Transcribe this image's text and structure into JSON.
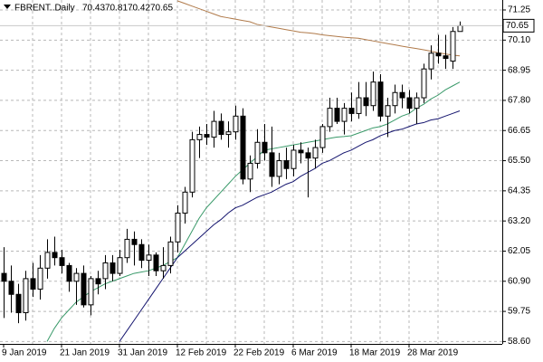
{
  "chart_data": {
    "type": "candlestick",
    "symbol": "FBRENT..Daily",
    "categories": [
      "9 Jan 2019",
      null,
      null,
      null,
      null,
      null,
      null,
      null,
      "21 Jan 2019",
      null,
      null,
      null,
      null,
      null,
      null,
      null,
      "31 Jan 2019",
      null,
      null,
      null,
      null,
      null,
      null,
      null,
      "12 Feb 2019",
      null,
      null,
      null,
      null,
      null,
      null,
      null,
      "22 Feb 2019",
      null,
      null,
      null,
      null,
      null,
      null,
      null,
      "6 Mar 2019",
      null,
      null,
      null,
      null,
      null,
      null,
      null,
      "18 Mar 2019",
      null,
      null,
      null,
      null,
      null,
      null,
      null,
      "28 Mar 2019",
      null,
      null,
      null,
      null,
      null,
      null,
      null
    ],
    "open": [
      61.2,
      60.9,
      60.4,
      59.7,
      61.0,
      60.6,
      61.4,
      62.0,
      61.8,
      61.5,
      60.9,
      61.2,
      60.0,
      61.0,
      61.0,
      61.6,
      61.2,
      61.8,
      62.5,
      62.3,
      61.7,
      61.9,
      61.3,
      61.5,
      62.4,
      63.5,
      64.3,
      66.3,
      66.5,
      66.4,
      67.0,
      66.5,
      66.6,
      67.2,
      64.8,
      65.4,
      66.2,
      65.8,
      64.9,
      65.5,
      65.2,
      65.9,
      65.8,
      65.6,
      66.0,
      66.8,
      67.5,
      67.0,
      67.5,
      67.3,
      67.9,
      67.6,
      68.5,
      67.2,
      67.6,
      68.1,
      67.9,
      67.5,
      67.9,
      69.0,
      69.6,
      69.5,
      69.3,
      70.43
    ],
    "high": [
      62.2,
      61.5,
      60.8,
      61.3,
      61.6,
      61.9,
      62.5,
      62.6,
      62.1,
      61.6,
      61.4,
      61.5,
      61.1,
      61.3,
      61.9,
      61.9,
      62.1,
      62.9,
      62.8,
      62.5,
      62.3,
      62.0,
      62.2,
      62.6,
      63.8,
      64.5,
      66.6,
      66.8,
      66.9,
      67.4,
      67.3,
      67.0,
      67.6,
      67.5,
      65.7,
      66.7,
      66.9,
      66.8,
      65.8,
      66.0,
      66.1,
      66.2,
      66.0,
      66.3,
      66.9,
      67.9,
      67.9,
      67.7,
      68.1,
      68.5,
      68.5,
      68.9,
      68.8,
      67.9,
      68.4,
      68.4,
      68.2,
      68.1,
      69.2,
      69.9,
      70.3,
      70.3,
      70.6,
      70.81
    ],
    "low": [
      59.5,
      59.7,
      59.3,
      59.4,
      60.3,
      60.2,
      61.0,
      61.5,
      61.2,
      60.5,
      60.0,
      59.9,
      59.6,
      60.4,
      60.6,
      60.9,
      61.1,
      61.6,
      61.5,
      61.4,
      61.1,
      61.1,
      61.0,
      61.2,
      62.0,
      63.1,
      64.1,
      65.6,
      66.1,
      66.0,
      66.3,
      66.0,
      66.3,
      64.6,
      64.3,
      65.2,
      65.5,
      64.5,
      64.6,
      64.8,
      64.9,
      65.4,
      64.1,
      65.2,
      65.8,
      66.6,
      66.9,
      66.5,
      67.0,
      67.1,
      67.2,
      67.4,
      67.0,
      66.4,
      67.3,
      67.5,
      67.3,
      66.9,
      67.7,
      68.6,
      69.2,
      69.0,
      69.0,
      70.42
    ],
    "close": [
      60.9,
      60.4,
      59.7,
      61.0,
      60.6,
      61.4,
      62.0,
      61.8,
      61.5,
      60.9,
      61.2,
      60.0,
      61.0,
      60.8,
      61.6,
      61.2,
      61.8,
      62.5,
      62.3,
      61.7,
      61.9,
      61.3,
      61.5,
      62.4,
      63.5,
      64.3,
      66.3,
      66.5,
      66.4,
      67.0,
      66.5,
      66.6,
      67.2,
      64.8,
      65.4,
      66.2,
      65.8,
      64.9,
      65.5,
      65.2,
      65.9,
      65.8,
      65.6,
      66.0,
      66.8,
      67.5,
      67.0,
      67.5,
      67.3,
      67.9,
      67.6,
      68.5,
      67.2,
      67.6,
      68.1,
      67.9,
      67.5,
      67.9,
      69.0,
      69.6,
      69.5,
      69.4,
      70.43,
      70.65
    ],
    "series": [
      {
        "color": "#b07a4a",
        "values": [
          null,
          null,
          null,
          null,
          null,
          null,
          null,
          null,
          null,
          null,
          null,
          null,
          null,
          null,
          null,
          null,
          null,
          null,
          null,
          null,
          null,
          null,
          null,
          null,
          71.6,
          71.5,
          71.4,
          71.3,
          71.2,
          71.1,
          71.0,
          70.95,
          70.9,
          70.85,
          70.8,
          70.7,
          70.65,
          70.6,
          70.55,
          70.5,
          70.45,
          70.4,
          70.38,
          70.35,
          70.3,
          70.27,
          70.24,
          70.21,
          70.19,
          70.17,
          70.12,
          70.07,
          70.02,
          69.97,
          69.92,
          69.87,
          69.82,
          69.78,
          69.73,
          69.68,
          69.62,
          69.57,
          69.53,
          69.5
        ]
      },
      {
        "color": "#3a9a6a",
        "values": [
          null,
          null,
          null,
          null,
          null,
          null,
          58.6,
          59.1,
          59.5,
          59.8,
          60.1,
          60.3,
          60.5,
          60.65,
          60.8,
          60.9,
          61.0,
          61.1,
          61.2,
          61.25,
          61.3,
          61.4,
          61.5,
          61.65,
          61.8,
          62.3,
          62.8,
          63.3,
          63.7,
          64.0,
          64.3,
          64.6,
          64.9,
          65.15,
          65.4,
          65.65,
          65.9,
          65.95,
          66.0,
          66.05,
          66.1,
          66.15,
          66.2,
          66.25,
          66.3,
          66.35,
          66.4,
          66.42,
          66.45,
          66.55,
          66.65,
          66.75,
          66.8,
          66.9,
          67.05,
          67.2,
          67.3,
          67.5,
          67.65,
          67.85,
          68.0,
          68.2,
          68.35,
          68.5
        ]
      },
      {
        "color": "#14146e",
        "values": [
          null,
          null,
          null,
          null,
          null,
          null,
          null,
          null,
          null,
          null,
          null,
          null,
          null,
          null,
          null,
          null,
          58.6,
          59.0,
          59.4,
          59.8,
          60.2,
          60.6,
          61.0,
          61.4,
          61.8,
          62.05,
          62.3,
          62.55,
          62.8,
          63.05,
          63.25,
          63.5,
          63.7,
          63.8,
          63.95,
          64.1,
          64.2,
          64.3,
          64.45,
          64.6,
          64.7,
          64.9,
          65.05,
          65.2,
          65.4,
          65.5,
          65.65,
          65.8,
          65.9,
          66.05,
          66.2,
          66.3,
          66.45,
          66.55,
          66.65,
          66.7,
          66.8,
          66.9,
          66.95,
          67.05,
          67.1,
          67.2,
          67.3,
          67.4
        ]
      }
    ],
    "ylim": [
      58.51,
      71.63
    ],
    "yticks": [
      {
        "value": 58.6,
        "label": "58.60"
      },
      59.75,
      {
        "value": 60.9,
        "label": "60.90"
      },
      62.05,
      {
        "value": 63.2,
        "label": "63.20"
      },
      64.35,
      {
        "value": 65.5,
        "label": "65.50"
      },
      66.65,
      {
        "value": 67.8,
        "label": "67.80"
      },
      68.95,
      {
        "value": 70.1,
        "label": "70.10"
      },
      71.25
    ],
    "grid": true
  }
}
